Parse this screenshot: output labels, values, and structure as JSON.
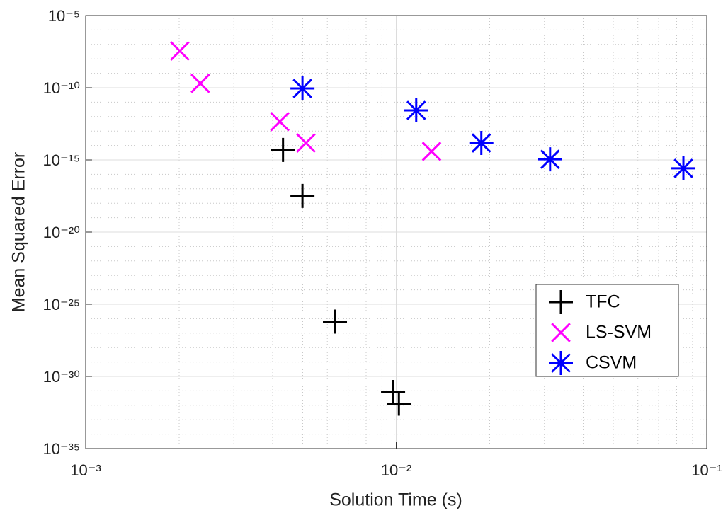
{
  "chart_data": {
    "type": "scatter",
    "xlabel": "Solution Time (s)",
    "ylabel": "Mean Squared Error",
    "xscale": "log",
    "yscale": "log",
    "xlim": [
      0.001,
      0.1
    ],
    "ylim": [
      1e-35,
      1e-05
    ],
    "xticks": [
      {
        "value": 0.001,
        "label": "10⁻³"
      },
      {
        "value": 0.01,
        "label": "10⁻²"
      },
      {
        "value": 0.1,
        "label": "10⁻¹"
      }
    ],
    "yticks": [
      {
        "value": 1e-35,
        "label": "10⁻³⁵"
      },
      {
        "value": 1e-30,
        "label": "10⁻³⁰"
      },
      {
        "value": 1e-25,
        "label": "10⁻²⁵"
      },
      {
        "value": 1e-20,
        "label": "10⁻²⁰"
      },
      {
        "value": 1e-15,
        "label": "10⁻¹⁵"
      },
      {
        "value": 1e-10,
        "label": "10⁻¹⁰"
      },
      {
        "value": 1e-05,
        "label": "10⁻⁵"
      }
    ],
    "grid": true,
    "minor_grid": true,
    "legend_loc": "lower right",
    "series": [
      {
        "name": "TFC",
        "color": "#000000",
        "marker": "+",
        "x": [
          0.00432,
          0.00499,
          0.00635,
          0.00977,
          0.0102
        ],
        "values": [
          4.9e-15,
          3.2e-18,
          6.3e-27,
          8.3e-32,
          1.3e-32
        ]
      },
      {
        "name": "LS-SVM",
        "color": "#ff00ff",
        "marker": "x",
        "x": [
          0.00201,
          0.00234,
          0.00422,
          0.00512,
          0.013
        ],
        "values": [
          3.5e-08,
          2e-10,
          4.5e-13,
          1.5e-14,
          3.9e-15
        ]
      },
      {
        "name": "CSVM",
        "color": "#0000ff",
        "marker": "*",
        "x": [
          0.00499,
          0.0116,
          0.0188,
          0.0313,
          0.0841
        ],
        "values": [
          8.9e-11,
          2.7e-12,
          1.5e-14,
          1.1e-15,
          2.6e-16
        ]
      }
    ]
  }
}
